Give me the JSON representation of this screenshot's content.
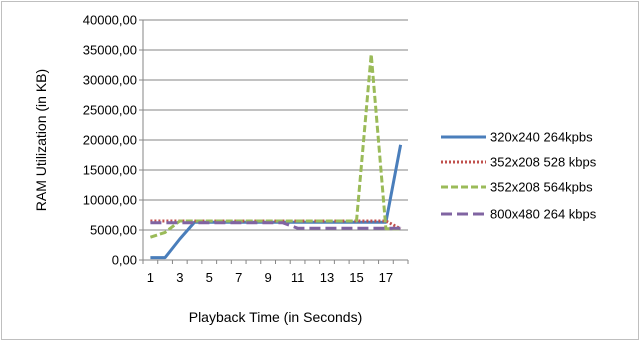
{
  "chart_data": {
    "type": "line",
    "title": "",
    "xlabel": "Playback Time (in Seconds)",
    "ylabel": "RAM Utilization (in KB)",
    "x": [
      1,
      2,
      3,
      4,
      5,
      6,
      7,
      8,
      9,
      10,
      11,
      12,
      13,
      14,
      15,
      16,
      17,
      18
    ],
    "x_tick_labels": [
      "1",
      "3",
      "5",
      "7",
      "9",
      "11",
      "13",
      "15",
      "17"
    ],
    "x_tick_values": [
      1,
      3,
      5,
      7,
      9,
      11,
      13,
      15,
      17
    ],
    "ylim": [
      0,
      40000
    ],
    "y_ticks": [
      0,
      5000,
      10000,
      15000,
      20000,
      25000,
      30000,
      35000,
      40000
    ],
    "y_tick_labels": [
      "0,00",
      "5000,00",
      "10000,00",
      "15000,00",
      "20000,00",
      "25000,00",
      "30000,00",
      "35000,00",
      "40000,00"
    ],
    "grid": "horizontal",
    "legend_position": "right",
    "series": [
      {
        "name": "320x240 264kpbs",
        "color": "#4a7ebb",
        "dash": "solid",
        "values": [
          400,
          400,
          3500,
          6300,
          6300,
          6300,
          6300,
          6300,
          6300,
          6300,
          6300,
          6300,
          6300,
          6300,
          6300,
          6300,
          6300,
          19200
        ]
      },
      {
        "name": "352x208 528 kbps",
        "color": "#c0504d",
        "dash": "dotted",
        "values": [
          6500,
          6500,
          6500,
          6500,
          6500,
          6500,
          6500,
          6500,
          6500,
          6500,
          6500,
          6500,
          6500,
          6500,
          6500,
          6500,
          6500,
          5200
        ]
      },
      {
        "name": "352x208 564kpbs",
        "color": "#9bbb59",
        "dash": "dashed",
        "values": [
          3800,
          4600,
          6500,
          6500,
          6500,
          6500,
          6500,
          6500,
          6500,
          6500,
          6500,
          6500,
          6500,
          6500,
          6500,
          34300,
          5200,
          5200
        ]
      },
      {
        "name": "800x480 264 kbps",
        "color": "#8064a2",
        "dash": "longdash",
        "values": [
          6200,
          6200,
          6200,
          6200,
          6200,
          6200,
          6200,
          6200,
          6200,
          6200,
          5300,
          5300,
          5300,
          5300,
          5300,
          5300,
          5300,
          5300
        ]
      }
    ]
  }
}
